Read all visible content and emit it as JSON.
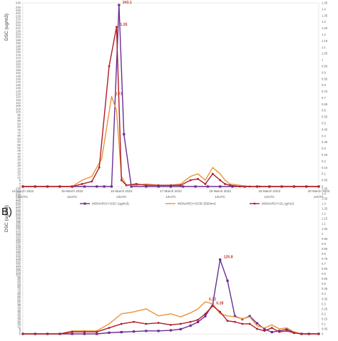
{
  "chart_data": [
    {
      "type": "line",
      "panel_label": "",
      "ylabel": "DSC  (ug/m3)",
      "ylim": [
        0,
        246
      ],
      "y_ticks": [
        0,
        4,
        8,
        12,
        16,
        20,
        24,
        28,
        32,
        36,
        40,
        44,
        48,
        52,
        56,
        60,
        64,
        68,
        72,
        76,
        80,
        84,
        88,
        92,
        96,
        100,
        104,
        108,
        112,
        116,
        120,
        124,
        128,
        132,
        136,
        140,
        144,
        148,
        152,
        156,
        160,
        164,
        168,
        172,
        176,
        180,
        184,
        188,
        192,
        196,
        200,
        204,
        208,
        212,
        216,
        220,
        224,
        228,
        232,
        236,
        240,
        246
      ],
      "y2lim": [
        0,
        1.45
      ],
      "y2_ticks": [
        "0",
        "0.05",
        "0.1",
        "0.15",
        "0.2",
        "0.25",
        "0.3",
        "0.35",
        "0.4",
        "0.45",
        "0.5",
        "0.55",
        "0.6",
        "0.65",
        "0.7",
        "0.75",
        "0.8",
        "0.85",
        "0.9",
        "0.95",
        "1",
        "1.05",
        "1.1",
        "1.15",
        "1.2",
        "1.25",
        "1.3",
        "1.35",
        "1.4",
        "1.45"
      ],
      "x_tick_labels": [
        {
          "date": "14 March 2022",
          "time": "12UTC"
        },
        {
          "date": "15 March 2022",
          "time": "12UTC"
        },
        {
          "date": "16 March 2022",
          "time": "12UTC"
        },
        {
          "date": "17 March 2022",
          "time": "12UTC"
        },
        {
          "date": "18 March 2022",
          "time": "12UTC"
        },
        {
          "date": "19 March 2022",
          "time": "12UTC"
        },
        {
          "date": "20 March 2022",
          "time": "12UTC"
        }
      ],
      "x_days": [
        0,
        1,
        2,
        3,
        4,
        5,
        6
      ],
      "series": [
        {
          "name": "MONARCH DSC (ug/m3)",
          "color": "#6b2d91",
          "marker": "square",
          "axis": "left",
          "x": [
            0,
            0.25,
            0.5,
            0.75,
            1,
            1.25,
            1.5,
            1.65,
            1.8,
            1.95,
            2.05,
            2.2,
            2.5,
            2.75,
            3,
            3.25,
            3.5,
            3.75,
            4,
            4.25,
            4.5,
            4.75,
            5,
            5.25,
            5.5,
            5.75,
            6
          ],
          "values": [
            0,
            0,
            0,
            0,
            0,
            0,
            0,
            0,
            0,
            243.1,
            70,
            0,
            0,
            0,
            0,
            0,
            0,
            0,
            0,
            0,
            0,
            0,
            0,
            0,
            0,
            0,
            0
          ]
        },
        {
          "name": "MONARCH DOD (550nm)",
          "color": "#e8943a",
          "marker": "none",
          "axis": "right",
          "x": [
            0,
            0.25,
            0.5,
            0.75,
            1,
            1.2,
            1.4,
            1.6,
            1.8,
            1.9,
            2.0,
            2.1,
            2.3,
            2.5,
            2.75,
            3,
            3.2,
            3.4,
            3.55,
            3.7,
            3.85,
            4,
            4.1,
            4.2,
            4.4,
            4.6,
            4.8,
            5,
            5.25,
            5.5,
            5.75,
            6
          ],
          "values": [
            0,
            0,
            0,
            0,
            0,
            0.05,
            0.08,
            0.22,
            0.71,
            0.6,
            0.08,
            0.01,
            0.01,
            0.02,
            0.01,
            0.01,
            0.02,
            0.08,
            0.1,
            0.05,
            0.15,
            0.1,
            0.05,
            0.02,
            0.01,
            0,
            0,
            0,
            0,
            0,
            0,
            0
          ]
        },
        {
          "name": "MONARCH DL (g/m2)",
          "color": "#b01c28",
          "marker": "circle",
          "axis": "right",
          "x": [
            0,
            0.25,
            0.5,
            0.75,
            1,
            1.2,
            1.4,
            1.55,
            1.75,
            1.9,
            2.0,
            2.1,
            2.3,
            2.5,
            2.75,
            3,
            3.2,
            3.4,
            3.55,
            3.7,
            3.85,
            4,
            4.1,
            4.2,
            4.4,
            4.6,
            4.8,
            5,
            5.25,
            5.5,
            5.75,
            6
          ],
          "values": [
            0,
            0,
            0,
            0,
            0,
            0.02,
            0.04,
            0.15,
            0.95,
            1.26,
            0.05,
            0.01,
            0.02,
            0.01,
            0.01,
            0.01,
            0.01,
            0.05,
            0.06,
            0.02,
            0.1,
            0.05,
            0.02,
            0.01,
            0,
            0,
            0,
            0,
            0,
            0,
            0,
            0
          ]
        }
      ],
      "annotations": [
        {
          "text": "243.1",
          "x": 1.95,
          "y": 243.1,
          "axis": "left",
          "color": "#c0392b"
        },
        {
          "text": "1.26",
          "x": 1.9,
          "y": 1.26,
          "axis": "right",
          "color": "#c0392b"
        },
        {
          "text": "0.71",
          "x": 1.8,
          "y": 0.71,
          "axis": "right",
          "color": "#c0392b"
        }
      ],
      "legend_position": "bottom"
    },
    {
      "type": "line",
      "panel_label": "B)",
      "ylabel": "DSC  (ug/m3)",
      "ylim": [
        0,
        246
      ],
      "y_ticks": [
        0,
        4,
        8,
        12,
        16,
        20,
        24,
        28,
        32,
        36,
        40,
        44,
        48,
        52,
        56,
        60,
        64,
        68,
        72,
        76,
        80,
        84,
        88,
        92,
        96,
        100,
        104,
        108,
        112,
        116,
        120,
        124,
        128,
        132,
        136,
        140,
        144,
        148,
        152,
        156,
        160,
        164,
        168,
        172,
        176,
        180,
        184,
        188,
        192,
        196,
        200,
        204,
        208,
        212,
        216,
        220,
        224,
        228,
        232,
        236,
        240,
        246
      ],
      "y2lim": [
        0,
        1.45
      ],
      "y2_ticks": [
        "0",
        "0.05",
        "0.1",
        "0.15",
        "0.2",
        "0.25",
        "0.3",
        "0.35",
        "0.4",
        "0.45",
        "0.5",
        "0.55",
        "0.6",
        "0.65",
        "0.7",
        "0.75",
        "0.8",
        "0.85",
        "0.9",
        "0.95",
        "1",
        "1.05",
        "1.1",
        "1.15",
        "1.2",
        "1.25",
        "1.3",
        "1.35",
        "1.4",
        "1.45"
      ],
      "series": [
        {
          "name": "MONARCH DSC (ug/m3)",
          "color": "#6b2d91",
          "marker": "square",
          "axis": "left",
          "x": [
            0,
            0.25,
            0.5,
            0.75,
            1,
            1.25,
            1.5,
            1.75,
            2,
            2.25,
            2.5,
            2.75,
            3,
            3.2,
            3.4,
            3.55,
            3.7,
            3.85,
            4,
            4.15,
            4.3,
            4.45,
            4.6,
            4.75,
            4.9,
            5.05,
            5.2,
            5.35,
            5.5,
            5.65,
            5.8,
            6
          ],
          "values": [
            0,
            0,
            0,
            0,
            0,
            0,
            0,
            2,
            3,
            4,
            5,
            5,
            6,
            8,
            14,
            20,
            30,
            50,
            125.8,
            90,
            30,
            25,
            30,
            18,
            8,
            3,
            5,
            8,
            2,
            0,
            0,
            0
          ]
        },
        {
          "name": "MONARCH DOD (550nm)",
          "color": "#e8943a",
          "marker": "none",
          "axis": "right",
          "x": [
            0,
            0.25,
            0.5,
            0.75,
            1,
            1.25,
            1.5,
            1.75,
            2,
            2.25,
            2.5,
            2.75,
            3,
            3.2,
            3.4,
            3.55,
            3.7,
            3.85,
            4,
            4.15,
            4.3,
            4.45,
            4.6,
            4.75,
            4.9,
            5.05,
            5.2,
            5.35,
            5.5,
            5.65,
            5.8,
            6
          ],
          "values": [
            0,
            0,
            0,
            0,
            0.03,
            0.03,
            0.03,
            0.1,
            0.2,
            0.22,
            0.25,
            0.18,
            0.2,
            0.17,
            0.21,
            0.25,
            0.32,
            0.3,
            0.2,
            0.18,
            0.17,
            0.15,
            0.17,
            0.08,
            0.06,
            0.09,
            0.05,
            0.06,
            0.02,
            0,
            0,
            0
          ]
        },
        {
          "name": "MONARCH DL (g/m2)",
          "color": "#b01c28",
          "marker": "circle",
          "axis": "right",
          "x": [
            0,
            0.25,
            0.5,
            0.75,
            1,
            1.25,
            1.5,
            1.75,
            2,
            2.25,
            2.5,
            2.75,
            3,
            3.2,
            3.4,
            3.55,
            3.7,
            3.85,
            4,
            4.15,
            4.3,
            4.45,
            4.6,
            4.75,
            4.9,
            5.05,
            5.2,
            5.35,
            5.5,
            5.65,
            5.8,
            6
          ],
          "values": [
            0,
            0,
            0,
            0,
            0.02,
            0.02,
            0.02,
            0.06,
            0.1,
            0.12,
            0.1,
            0.11,
            0.09,
            0.1,
            0.12,
            0.14,
            0.2,
            0.28,
            0.22,
            0.13,
            0.12,
            0.1,
            0.1,
            0.05,
            0.03,
            0.06,
            0.02,
            0.03,
            0.01,
            0,
            0,
            0
          ]
        }
      ],
      "annotations": [
        {
          "text": "125.8",
          "x": 4.0,
          "y": 125.8,
          "axis": "left",
          "color": "#c0392b"
        },
        {
          "text": "0.32",
          "x": 3.7,
          "y": 0.32,
          "axis": "right",
          "color": "#c0392b"
        },
        {
          "text": "0.28",
          "x": 3.85,
          "y": 0.28,
          "axis": "right",
          "color": "#c0392b"
        }
      ]
    }
  ]
}
